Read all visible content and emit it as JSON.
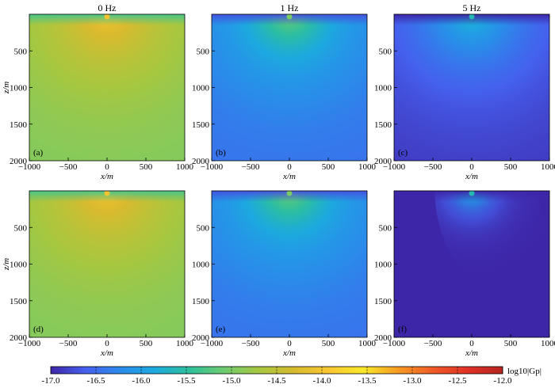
{
  "chart_data": {
    "type": "heatmap",
    "layout": {
      "rows": 2,
      "cols": 3
    },
    "column_titles": [
      "0 Hz",
      "1 Hz",
      "5 Hz"
    ],
    "xlabel": "x/m",
    "ylabel": "z/m",
    "xlim": [
      -1000,
      1000
    ],
    "ylim": [
      0,
      2000
    ],
    "y_reversed": true,
    "xticks": [
      -1000,
      -500,
      0,
      500,
      1000
    ],
    "yticks": [
      500,
      1000,
      1500,
      2000
    ],
    "panels": [
      {
        "label": "(a)",
        "frequency_hz": 0,
        "max_log10": -14.0,
        "min_log10": -15.3,
        "far_log10": -15.0,
        "anisotropic": false
      },
      {
        "label": "(b)",
        "frequency_hz": 1,
        "max_log10": -15.0,
        "min_log10": -16.7,
        "far_log10": -16.5,
        "anisotropic": false
      },
      {
        "label": "(c)",
        "frequency_hz": 5,
        "max_log10": -15.6,
        "min_log10": -17.0,
        "far_log10": -16.9,
        "anisotropic": false
      },
      {
        "label": "(d)",
        "frequency_hz": 0,
        "max_log10": -14.0,
        "min_log10": -15.3,
        "far_log10": -15.0,
        "anisotropic": false
      },
      {
        "label": "(e)",
        "frequency_hz": 1,
        "max_log10": -15.0,
        "min_log10": -16.7,
        "far_log10": -16.5,
        "anisotropic": false
      },
      {
        "label": "(f)",
        "frequency_hz": 5,
        "max_log10": -15.6,
        "min_log10": -17.0,
        "far_log10": -17.0,
        "anisotropic": true
      }
    ],
    "colorbar": {
      "min": -17.0,
      "max": -12.0,
      "ticks": [
        "-17.0",
        "-16.5",
        "-16.0",
        "-15.5",
        "-15.0",
        "-14.5",
        "-14.0",
        "-13.5",
        "-13.0",
        "-12.5",
        "-12.0"
      ],
      "label": "log10|Gp|",
      "colormap": [
        "#3e26a8",
        "#4560ee",
        "#2a8bea",
        "#1caadf",
        "#2dc09a",
        "#6fcc6f",
        "#a8c73f",
        "#d8ba2e",
        "#fac731",
        "#f9e829",
        "#f69a22",
        "#f05a26",
        "#e03125",
        "#b42520"
      ]
    }
  }
}
